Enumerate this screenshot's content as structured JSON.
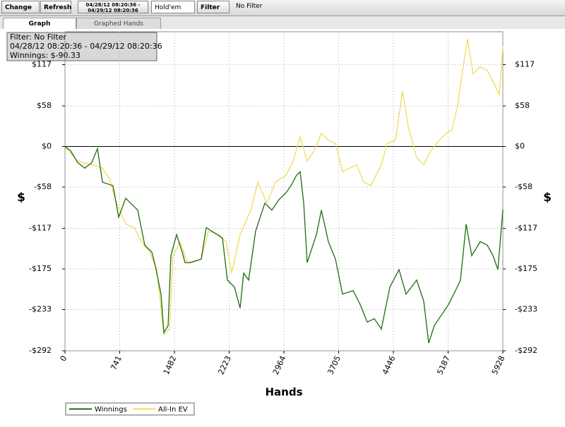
{
  "toolbar": {
    "change": "Change",
    "refresh": "Refresh",
    "date_from": "04/28/12 08:20:36 -",
    "date_to": "04/29/12 08:20:36",
    "game": "Hold'em",
    "filter": "Filter",
    "filter_status": "No Filter"
  },
  "tabs": [
    "Graph",
    "Graphed Hands"
  ],
  "info_box": [
    "Filter: No Filter",
    "04/28/12 08:20:36 - 04/29/12 08:20:36",
    "Winnings: $-90.33"
  ],
  "chart_data": {
    "type": "line",
    "x_label": "Hands",
    "y_label": "$",
    "grid": true,
    "xlim": [
      0,
      5928
    ],
    "xticks": [
      0,
      741,
      1482,
      2223,
      2964,
      3705,
      4446,
      5187,
      5928
    ],
    "ylim": [
      -292,
      164
    ],
    "yticks": [
      {
        "value": -292,
        "label": "-$292"
      },
      {
        "value": -233,
        "label": "-$233"
      },
      {
        "value": -175,
        "label": "-$175"
      },
      {
        "value": -117,
        "label": "-$117"
      },
      {
        "value": -58,
        "label": "-$58"
      },
      {
        "value": 0,
        "label": "$0"
      },
      {
        "value": 58,
        "label": "$58"
      },
      {
        "value": 117,
        "label": "$117"
      }
    ],
    "series": [
      {
        "name": "Winnings",
        "color": "#1e6b12",
        "x": [
          0,
          76,
          172,
          268,
          363,
          440,
          507,
          650,
          727,
          822,
          985,
          1080,
          1176,
          1224,
          1300,
          1339,
          1396,
          1434,
          1511,
          1587,
          1625,
          1702,
          1845,
          1912,
          1989,
          2132,
          2199,
          2295,
          2371,
          2419,
          2486,
          2581,
          2706,
          2801,
          2897,
          2993,
          3060,
          3136,
          3184,
          3232,
          3279,
          3404,
          3471,
          3566,
          3662,
          3757,
          3901,
          3997,
          4092,
          4188,
          4283,
          4398,
          4522,
          4618,
          4761,
          4857,
          4924,
          5000,
          5096,
          5192,
          5287,
          5354,
          5431,
          5507,
          5622,
          5717,
          5794,
          5861,
          5928
        ],
        "values": [
          0,
          -6,
          -23,
          -31,
          -23,
          -3,
          -51,
          -56,
          -101,
          -74,
          -91,
          -141,
          -151,
          -171,
          -211,
          -266,
          -256,
          -156,
          -126,
          -151,
          -166,
          -166,
          -161,
          -116,
          -121,
          -131,
          -191,
          -201,
          -231,
          -181,
          -191,
          -121,
          -81,
          -91,
          -76,
          -66,
          -56,
          -41,
          -36,
          -81,
          -166,
          -126,
          -91,
          -136,
          -161,
          -211,
          -206,
          -226,
          -251,
          -246,
          -261,
          -201,
          -176,
          -211,
          -191,
          -221,
          -281,
          -256,
          -241,
          -226,
          -206,
          -191,
          -111,
          -156,
          -136,
          -141,
          -156,
          -176,
          -90.33
        ]
      },
      {
        "name": "All-In EV",
        "color": "#f0dc5a",
        "x": [
          0,
          172,
          363,
          507,
          602,
          698,
          822,
          937,
          1033,
          1147,
          1243,
          1339,
          1415,
          1463,
          1558,
          1654,
          1845,
          1941,
          2084,
          2180,
          2256,
          2371,
          2515,
          2610,
          2734,
          2849,
          2993,
          3088,
          3184,
          3279,
          3375,
          3471,
          3566,
          3662,
          3757,
          3853,
          3949,
          4044,
          4140,
          4283,
          4360,
          4474,
          4570,
          4646,
          4761,
          4857,
          4953,
          5067,
          5163,
          5239,
          5316,
          5383,
          5450,
          5526,
          5622,
          5717,
          5813,
          5880,
          5928
        ],
        "values": [
          0,
          -21,
          -26,
          -31,
          -46,
          -81,
          -111,
          -116,
          -136,
          -151,
          -176,
          -269,
          -261,
          -156,
          -136,
          -166,
          -161,
          -121,
          -126,
          -136,
          -181,
          -126,
          -91,
          -51,
          -81,
          -51,
          -41,
          -21,
          14,
          -21,
          -6,
          19,
          9,
          4,
          -36,
          -31,
          -26,
          -51,
          -56,
          -26,
          4,
          9,
          79,
          29,
          -16,
          -26,
          -6,
          9,
          19,
          24,
          59,
          109,
          154,
          104,
          114,
          109,
          89,
          74,
          144
        ]
      }
    ]
  }
}
